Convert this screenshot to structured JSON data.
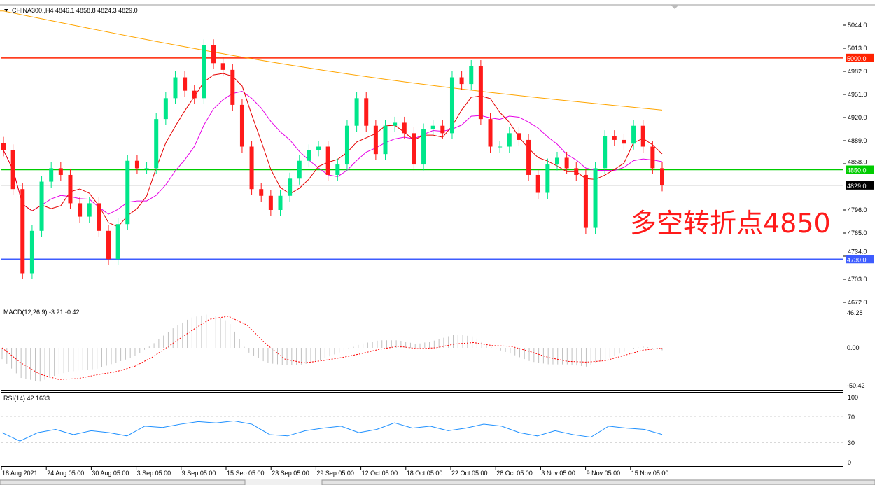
{
  "header": {
    "symbol": "CHINA300.,H4",
    "ohlc": "4846.1 4858.8 4824.3 4829.0"
  },
  "annotation": "多空转折点4850",
  "colors": {
    "bull": "#00e68a",
    "bear": "#ff1a1a",
    "ma_long": "#ffa500",
    "ma_fast": "#e60000",
    "ma_mid": "#e600e6",
    "macd_signal": "#ff0000",
    "macd_hist": "#c0c0c0",
    "rsi": "#1e90ff"
  },
  "chart_data": {
    "type": "candlestick",
    "price_axis": {
      "ticks": [
        "5044.0",
        "5013.0",
        "4982.0",
        "4951.0",
        "4920.0",
        "4889.0",
        "4858.0",
        "4796.0",
        "4765.0",
        "4734.0",
        "4703.0",
        "4672.0"
      ],
      "range": [
        4672,
        5050
      ]
    },
    "levels": [
      {
        "price": 5000,
        "label": "5000.0",
        "color": "#ff2200"
      },
      {
        "price": 4850,
        "label": "4850.0",
        "color": "#00cc00"
      },
      {
        "price": 4730,
        "label": "4730.0",
        "color": "#3d5cff"
      },
      {
        "price": 4829,
        "label": "4829.0",
        "color": "#000000",
        "current": true
      }
    ],
    "closes": [
      4876,
      4824,
      4711,
      4768,
      4834,
      4852,
      4843,
      4805,
      4787,
      4805,
      4768,
      4730,
      4777,
      4862,
      4852,
      4852,
      4918,
      4946,
      4974,
      4956,
      4946,
      5017,
      4993,
      4984,
      4937,
      4881,
      4824,
      4815,
      4796,
      4815,
      4838,
      4862,
      4876,
      4881,
      4843,
      4857,
      4909,
      4946,
      4909,
      4871,
      4909,
      4913,
      4899,
      4857,
      4904,
      4909,
      4899,
      4974,
      4965,
      4989,
      4918,
      4881,
      4881,
      4899,
      4890,
      4843,
      4819,
      4857,
      4866,
      4852,
      4843,
      4772,
      4852,
      4895,
      4890,
      4885,
      4909,
      4881,
      4852,
      4829
    ],
    "ma_long": {
      "start": 5063,
      "end": 4930
    },
    "x_labels": [
      "18 Aug 2021",
      "24 Aug 05:00",
      "30 Aug 05:00",
      "3 Sep 05:00",
      "9 Sep 05:00",
      "15 Sep 05:00",
      "23 Sep 05:00",
      "29 Sep 05:00",
      "12 Oct 05:00",
      "18 Oct 05:00",
      "22 Oct 05:00",
      "28 Oct 05:00",
      "3 Nov 05:00",
      "9 Nov 05:00",
      "15 Nov 05:00"
    ],
    "macd": {
      "label": "MACD(12,26,9) -3.21 -0.42",
      "ticks": [
        "46.28",
        "0.00",
        "-50.42"
      ],
      "range": [
        -50.42,
        46.28
      ],
      "hist": [
        -15,
        -40,
        -45,
        -35,
        -30,
        -28,
        -20,
        -12,
        5,
        25,
        40,
        45,
        35,
        -5,
        -20,
        -23,
        -22,
        -15,
        -5,
        5,
        10,
        10,
        5,
        10,
        18,
        15,
        0,
        -8,
        -18,
        -22,
        -22,
        -25,
        -15,
        -5,
        2,
        -3.21
      ],
      "signal": [
        0,
        -20,
        -35,
        -42,
        -41,
        -36,
        -32,
        -25,
        -12,
        5,
        22,
        38,
        42,
        30,
        5,
        -15,
        -20,
        -17,
        -13,
        -8,
        -2,
        2,
        -1,
        0,
        5,
        7,
        3,
        2,
        -5,
        -13,
        -18,
        -19,
        -17,
        -10,
        -3,
        -0.42
      ]
    },
    "rsi": {
      "label": "RSI(14) 42.1633",
      "ticks": [
        "100",
        "70",
        "30",
        "0"
      ],
      "range": [
        0,
        100
      ],
      "values": [
        45,
        32,
        45,
        50,
        42,
        48,
        45,
        40,
        55,
        53,
        58,
        62,
        60,
        63,
        58,
        42,
        40,
        48,
        52,
        55,
        45,
        50,
        60,
        52,
        55,
        48,
        52,
        58,
        55,
        45,
        40,
        48,
        42,
        38,
        55,
        52,
        50,
        42.16
      ]
    }
  }
}
